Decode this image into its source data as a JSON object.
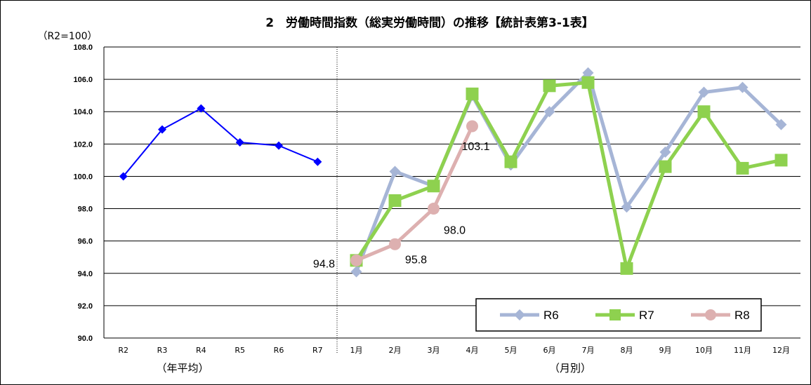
{
  "chart_data": {
    "type": "line",
    "title": "2　労働時間指数（総実労働時間）の推移【統計表第3-1表】",
    "unit_label": "（R2=100）",
    "ylim": [
      90.0,
      108.0
    ],
    "y_ticks": [
      "90.0",
      "92.0",
      "94.0",
      "96.0",
      "98.0",
      "100.0",
      "102.0",
      "104.0",
      "106.0",
      "108.0"
    ],
    "grid": true,
    "annual": {
      "group_label": "（年平均）",
      "categories": [
        "R2",
        "R3",
        "R4",
        "R5",
        "R6",
        "R7"
      ],
      "values": [
        100.0,
        102.9,
        104.2,
        102.1,
        101.9,
        100.9
      ],
      "color": "#0000ff"
    },
    "monthly": {
      "group_label": "（月別）",
      "categories": [
        "1月",
        "2月",
        "3月",
        "4月",
        "5月",
        "6月",
        "7月",
        "8月",
        "9月",
        "10月",
        "11月",
        "12月"
      ],
      "series": [
        {
          "name": "R6",
          "color": "#a6b5d6",
          "marker": "diamond",
          "values": [
            94.1,
            100.3,
            99.4,
            105.0,
            100.7,
            104.0,
            106.4,
            98.1,
            101.5,
            105.2,
            105.5,
            103.2
          ]
        },
        {
          "name": "R7",
          "color": "#8ed14f",
          "marker": "square",
          "values": [
            94.8,
            98.5,
            99.4,
            105.1,
            100.9,
            105.6,
            105.8,
            94.3,
            100.6,
            104.0,
            100.5,
            101.0
          ]
        },
        {
          "name": "R8",
          "color": "#ddb0b0",
          "marker": "circle",
          "values": [
            94.8,
            95.8,
            98.0,
            103.1
          ],
          "data_labels": [
            "94.8",
            "95.8",
            "98.0",
            "103.1"
          ]
        }
      ]
    },
    "legend_position": "bottom-right"
  }
}
